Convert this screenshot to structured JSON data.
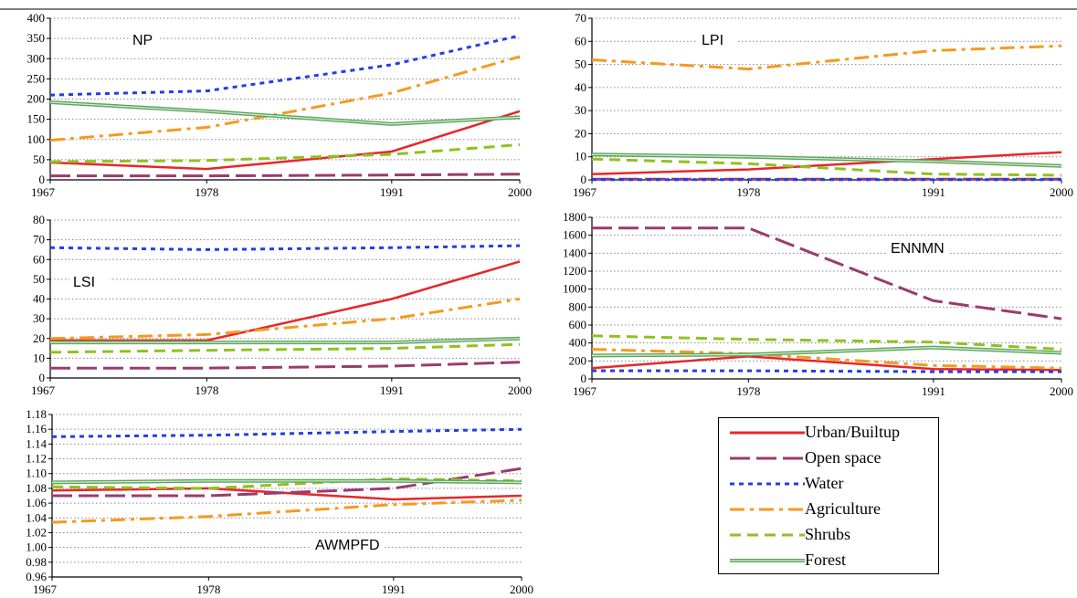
{
  "colors": {
    "Urban/Builtup": "#e8262b",
    "Open space": "#9c3a6e",
    "Water": "#1f3fe6",
    "Agriculture": "#f59a1e",
    "Shrubs": "#8fc21f",
    "Forest": "#5aa65a"
  },
  "legend": {
    "items": [
      {
        "label": "Urban/Builtup",
        "style": "solid",
        "color": "#e8262b"
      },
      {
        "label": "Open space",
        "style": "long-dash",
        "color": "#9c3a6e"
      },
      {
        "label": "Water",
        "style": "dot",
        "color": "#1f3fe6"
      },
      {
        "label": "Agriculture",
        "style": "dash-dot",
        "color": "#f59a1e"
      },
      {
        "label": "Shrubs",
        "style": "dash",
        "color": "#8fc21f"
      },
      {
        "label": "Forest",
        "style": "double",
        "color": "#5aa65a"
      }
    ]
  },
  "chart_data": [
    {
      "type": "line",
      "title": "NP",
      "categories": [
        "1967",
        "1978",
        "1991",
        "2000"
      ],
      "x": [
        1967,
        1978,
        1991,
        2000
      ],
      "ylim": [
        0,
        400
      ],
      "yticks": [
        "0",
        "50",
        "100",
        "150",
        "200",
        "250",
        "300",
        "350",
        "400"
      ],
      "grid": true,
      "series": [
        {
          "name": "Urban/Builtup",
          "values": [
            43,
            27,
            70,
            170
          ]
        },
        {
          "name": "Open space",
          "values": [
            10,
            10,
            12,
            14
          ]
        },
        {
          "name": "Water",
          "values": [
            210,
            220,
            285,
            357
          ]
        },
        {
          "name": "Agriculture",
          "values": [
            98,
            130,
            215,
            305
          ]
        },
        {
          "name": "Shrubs",
          "values": [
            45,
            48,
            63,
            87
          ]
        },
        {
          "name": "Forest",
          "values": [
            192,
            170,
            138,
            155
          ]
        }
      ]
    },
    {
      "type": "line",
      "title": "LPI",
      "categories": [
        "1967",
        "1978",
        "1991",
        "2000"
      ],
      "x": [
        1967,
        1978,
        1991,
        2000
      ],
      "ylim": [
        0,
        70
      ],
      "yticks": [
        "0",
        "10",
        "20",
        "30",
        "40",
        "50",
        "60",
        "70"
      ],
      "grid": true,
      "series": [
        {
          "name": "Urban/Builtup",
          "values": [
            2.5,
            4.5,
            9,
            12
          ]
        },
        {
          "name": "Open space",
          "values": [
            0.3,
            0.3,
            0.3,
            0.3
          ]
        },
        {
          "name": "Water",
          "values": [
            0.1,
            0.1,
            0.1,
            0.1
          ]
        },
        {
          "name": "Agriculture",
          "values": [
            52,
            48,
            56,
            58
          ]
        },
        {
          "name": "Shrubs",
          "values": [
            9,
            7,
            2.5,
            2
          ]
        },
        {
          "name": "Forest",
          "values": [
            11,
            10,
            8,
            6
          ]
        }
      ]
    },
    {
      "type": "line",
      "title": "LSI",
      "categories": [
        "1967",
        "1978",
        "1991",
        "2000"
      ],
      "x": [
        1967,
        1978,
        1991,
        2000
      ],
      "ylim": [
        0,
        80
      ],
      "yticks": [
        "0",
        "10",
        "20",
        "30",
        "40",
        "50",
        "60",
        "70",
        "80"
      ],
      "grid": true,
      "series": [
        {
          "name": "Urban/Builtup",
          "values": [
            19,
            19,
            40,
            59
          ]
        },
        {
          "name": "Open space",
          "values": [
            5,
            5,
            6,
            8
          ]
        },
        {
          "name": "Water",
          "values": [
            66,
            65,
            66,
            67
          ]
        },
        {
          "name": "Agriculture",
          "values": [
            20,
            22,
            30,
            40
          ]
        },
        {
          "name": "Shrubs",
          "values": [
            13,
            14,
            15,
            17
          ]
        },
        {
          "name": "Forest",
          "values": [
            18,
            18,
            18,
            20
          ]
        }
      ]
    },
    {
      "type": "line",
      "title": "ENNMN",
      "categories": [
        "1967",
        "1978",
        "1991",
        "2000"
      ],
      "x": [
        1967,
        1978,
        1991,
        2000
      ],
      "ylim": [
        0,
        1800
      ],
      "yticks": [
        "0",
        "200",
        "400",
        "600",
        "800",
        "1000",
        "1200",
        "1400",
        "1600",
        "1800"
      ],
      "grid": true,
      "series": [
        {
          "name": "Urban/Builtup",
          "values": [
            120,
            250,
            110,
            100
          ]
        },
        {
          "name": "Open space",
          "values": [
            1680,
            1680,
            870,
            670
          ]
        },
        {
          "name": "Water",
          "values": [
            90,
            90,
            80,
            80
          ]
        },
        {
          "name": "Agriculture",
          "values": [
            330,
            280,
            150,
            120
          ]
        },
        {
          "name": "Shrubs",
          "values": [
            480,
            440,
            410,
            330
          ]
        },
        {
          "name": "Forest",
          "values": [
            260,
            270,
            350,
            290
          ]
        }
      ]
    },
    {
      "type": "line",
      "title": "AWMPFD",
      "categories": [
        "1967",
        "1978",
        "1991",
        "2000"
      ],
      "x": [
        1967,
        1978,
        1991,
        2000
      ],
      "ylim": [
        0.96,
        1.18
      ],
      "yticks": [
        "0.96",
        "0.98",
        "1.00",
        "1.02",
        "1.04",
        "1.06",
        "1.08",
        "1.10",
        "1.12",
        "1.14",
        "1.16",
        "1.18"
      ],
      "grid": true,
      "series": [
        {
          "name": "Urban/Builtup",
          "values": [
            1.077,
            1.08,
            1.065,
            1.07
          ]
        },
        {
          "name": "Open space",
          "values": [
            1.07,
            1.07,
            1.08,
            1.107
          ]
        },
        {
          "name": "Water",
          "values": [
            1.15,
            1.152,
            1.157,
            1.16
          ]
        },
        {
          "name": "Agriculture",
          "values": [
            1.034,
            1.042,
            1.058,
            1.064
          ]
        },
        {
          "name": "Shrubs",
          "values": [
            1.082,
            1.08,
            1.093,
            1.09
          ]
        },
        {
          "name": "Forest",
          "values": [
            1.088,
            1.09,
            1.09,
            1.088
          ]
        }
      ]
    }
  ]
}
